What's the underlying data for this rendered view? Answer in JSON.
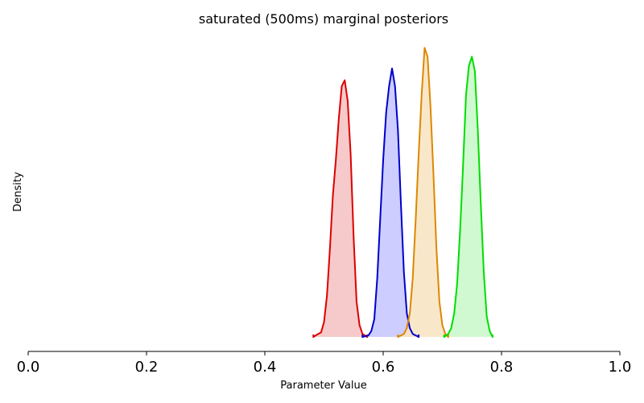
{
  "chart_data": {
    "type": "area",
    "title": "saturated (500ms) marginal posteriors",
    "xlabel": "Parameter Value",
    "ylabel": "Density",
    "xlim": [
      0.0,
      1.0
    ],
    "ylim": [
      0.0,
      1.0
    ],
    "x_ticks": [
      "0.0",
      "0.2",
      "0.4",
      "0.6",
      "0.8",
      "1.0"
    ],
    "grid": false,
    "legend": "none",
    "series": [
      {
        "color": "#dd0000",
        "fill": "#f5c4c4",
        "points": [
          [
            0.482,
            0.0
          ],
          [
            0.49,
            0.01
          ],
          [
            0.495,
            0.015
          ],
          [
            0.5,
            0.05
          ],
          [
            0.505,
            0.14
          ],
          [
            0.51,
            0.3
          ],
          [
            0.515,
            0.48
          ],
          [
            0.52,
            0.6
          ],
          [
            0.525,
            0.74
          ],
          [
            0.53,
            0.85
          ],
          [
            0.535,
            0.87
          ],
          [
            0.54,
            0.8
          ],
          [
            0.545,
            0.62
          ],
          [
            0.55,
            0.34
          ],
          [
            0.555,
            0.12
          ],
          [
            0.56,
            0.04
          ],
          [
            0.565,
            0.01
          ],
          [
            0.573,
            0.0
          ]
        ]
      },
      {
        "color": "#0000cc",
        "fill": "#c8c8ff",
        "points": [
          [
            0.565,
            0.0
          ],
          [
            0.575,
            0.005
          ],
          [
            0.58,
            0.02
          ],
          [
            0.585,
            0.06
          ],
          [
            0.59,
            0.2
          ],
          [
            0.595,
            0.4
          ],
          [
            0.6,
            0.6
          ],
          [
            0.605,
            0.76
          ],
          [
            0.61,
            0.85
          ],
          [
            0.615,
            0.91
          ],
          [
            0.62,
            0.85
          ],
          [
            0.625,
            0.7
          ],
          [
            0.63,
            0.45
          ],
          [
            0.635,
            0.22
          ],
          [
            0.64,
            0.08
          ],
          [
            0.645,
            0.03
          ],
          [
            0.65,
            0.01
          ],
          [
            0.66,
            0.0
          ]
        ]
      },
      {
        "color": "#dd8800",
        "fill": "#f8e4c4",
        "points": [
          [
            0.625,
            0.0
          ],
          [
            0.635,
            0.01
          ],
          [
            0.64,
            0.03
          ],
          [
            0.645,
            0.08
          ],
          [
            0.65,
            0.2
          ],
          [
            0.655,
            0.4
          ],
          [
            0.66,
            0.62
          ],
          [
            0.665,
            0.82
          ],
          [
            0.67,
            0.98
          ],
          [
            0.675,
            0.95
          ],
          [
            0.68,
            0.78
          ],
          [
            0.685,
            0.55
          ],
          [
            0.69,
            0.3
          ],
          [
            0.695,
            0.12
          ],
          [
            0.7,
            0.04
          ],
          [
            0.705,
            0.01
          ],
          [
            0.71,
            0.0
          ]
        ]
      },
      {
        "color": "#00dd00",
        "fill": "#ccf8cc",
        "points": [
          [
            0.703,
            0.0
          ],
          [
            0.71,
            0.01
          ],
          [
            0.715,
            0.03
          ],
          [
            0.72,
            0.08
          ],
          [
            0.725,
            0.18
          ],
          [
            0.73,
            0.36
          ],
          [
            0.735,
            0.58
          ],
          [
            0.74,
            0.82
          ],
          [
            0.745,
            0.92
          ],
          [
            0.75,
            0.95
          ],
          [
            0.755,
            0.9
          ],
          [
            0.76,
            0.7
          ],
          [
            0.765,
            0.45
          ],
          [
            0.77,
            0.22
          ],
          [
            0.775,
            0.07
          ],
          [
            0.78,
            0.02
          ],
          [
            0.785,
            0.0
          ]
        ]
      }
    ]
  }
}
